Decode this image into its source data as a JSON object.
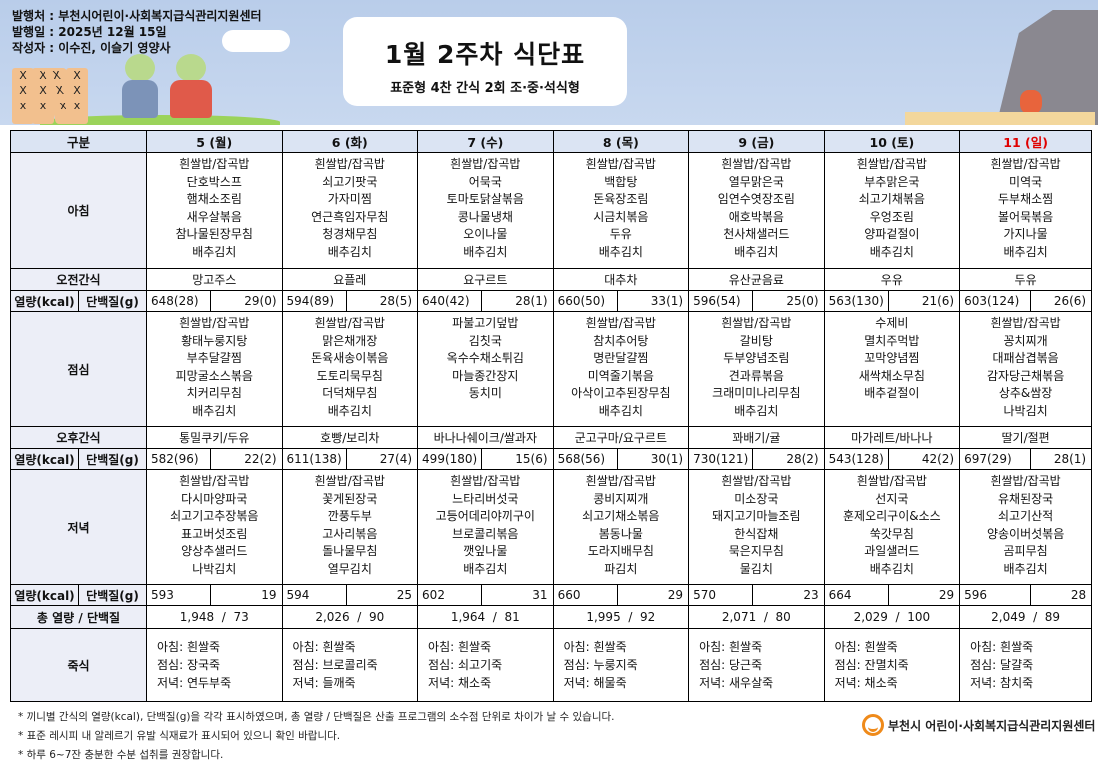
{
  "header": {
    "publisher": "발행처 : 부천시어린이·사회복지급식관리지원센터",
    "issue_date": "발행일 : 2025년 12월 15일",
    "author": "작성자 : 이수진, 이슬기 영양사",
    "title": "1월 2주차 식단표",
    "subtitle": "표준형 4찬 간식 2회 조·중·석식형"
  },
  "colors": {
    "header_bg": "#dbe4f3",
    "label_bg": "#eceef7",
    "sunday": "#e00000",
    "logo": "#ef8a1a"
  },
  "labels": {
    "category": "구분",
    "breakfast": "아침",
    "am_snack": "오전간식",
    "kcal": "열량(kcal)",
    "protein": "단백질(g)",
    "lunch": "점심",
    "pm_snack": "오후간식",
    "dinner": "저녁",
    "total": "총 열량 / 단백질",
    "porridge": "죽식"
  },
  "days": [
    {
      "label": "5 (월)",
      "sunday": false,
      "breakfast": [
        "흰쌀밥/잡곡밥",
        "단호박스프",
        "햄채소조림",
        "새우살볶음",
        "참나물된장무침",
        "배추김치"
      ],
      "am_snack": "망고주스",
      "am_kcal": "648(28)",
      "am_protein": "29(0)",
      "lunch": [
        "흰쌀밥/잡곡밥",
        "황태누룽지탕",
        "부추달걀찜",
        "피망굴소스볶음",
        "치커리무침",
        "배추김치"
      ],
      "pm_snack": "통밀쿠키/두유",
      "pm_kcal": "582(96)",
      "pm_protein": "22(2)",
      "dinner": [
        "흰쌀밥/잡곡밥",
        "다시마양파국",
        "쇠고기고추장볶음",
        "표고버섯조림",
        "양상추샐러드",
        "나박김치"
      ],
      "dn_kcal": "593",
      "dn_protein": "19",
      "total": "1,948  /  73",
      "porridge": [
        "아침: 흰쌀죽",
        "점심: 장국죽",
        "저녁: 연두부죽"
      ]
    },
    {
      "label": "6 (화)",
      "sunday": false,
      "breakfast": [
        "흰쌀밥/잡곡밥",
        "쇠고기팟국",
        "가자미찜",
        "연근흑임자무침",
        "청경채무침",
        "배추김치"
      ],
      "am_snack": "요플레",
      "am_kcal": "594(89)",
      "am_protein": "28(5)",
      "lunch": [
        "흰쌀밥/잡곡밥",
        "맑은채개장",
        "돈육새송이볶음",
        "도토리묵무침",
        "더덕채무침",
        "배추김치"
      ],
      "pm_snack": "호빵/보리차",
      "pm_kcal": "611(138)",
      "pm_protein": "27(4)",
      "dinner": [
        "흰쌀밥/잡곡밥",
        "꽃게된장국",
        "깐풍두부",
        "고사리볶음",
        "돌나물무침",
        "열무김치"
      ],
      "dn_kcal": "594",
      "dn_protein": "25",
      "total": "2,026  /  90",
      "porridge": [
        "아침: 흰쌀죽",
        "점심: 브로콜리죽",
        "저녁: 들깨죽"
      ]
    },
    {
      "label": "7 (수)",
      "sunday": false,
      "breakfast": [
        "흰쌀밥/잡곡밥",
        "어묵국",
        "토마토닭살볶음",
        "콩나물냉채",
        "오이나물",
        "배추김치"
      ],
      "am_snack": "요구르트",
      "am_kcal": "640(42)",
      "am_protein": "28(1)",
      "lunch": [
        "파불고기덮밥",
        "김칫국",
        "옥수수채소튀김",
        "마늘종간장지",
        "동치미"
      ],
      "pm_snack": "바나나쉐이크/쌀과자",
      "pm_kcal": "499(180)",
      "pm_protein": "15(6)",
      "dinner": [
        "흰쌀밥/잡곡밥",
        "느타리버섯국",
        "고등어데리야끼구이",
        "브로콜리볶음",
        "깻잎나물",
        "배추김치"
      ],
      "dn_kcal": "602",
      "dn_protein": "31",
      "total": "1,964  /  81",
      "porridge": [
        "아침: 흰쌀죽",
        "점심: 쇠고기죽",
        "저녁: 채소죽"
      ]
    },
    {
      "label": "8 (목)",
      "sunday": false,
      "breakfast": [
        "흰쌀밥/잡곡밥",
        "백합탕",
        "돈육장조림",
        "시금치볶음",
        "두유",
        "배추김치"
      ],
      "am_snack": "대추차",
      "am_kcal": "660(50)",
      "am_protein": "33(1)",
      "lunch": [
        "흰쌀밥/잡곡밥",
        "참치추어탕",
        "명란달걀찜",
        "미역줄기볶음",
        "아삭이고추된장무침",
        "배추김치"
      ],
      "pm_snack": "군고구마/요구르트",
      "pm_kcal": "568(56)",
      "pm_protein": "30(1)",
      "dinner": [
        "흰쌀밥/잡곡밥",
        "콩비지찌개",
        "쇠고기채소볶음",
        "봄동나물",
        "도라지배무침",
        "파김치"
      ],
      "dn_kcal": "660",
      "dn_protein": "29",
      "total": "1,995  /  92",
      "porridge": [
        "아침: 흰쌀죽",
        "점심: 누룽지죽",
        "저녁: 해물죽"
      ]
    },
    {
      "label": "9 (금)",
      "sunday": false,
      "breakfast": [
        "흰쌀밥/잡곡밥",
        "열무맑은국",
        "임연수엿장조림",
        "애호박볶음",
        "천사채샐러드",
        "배추김치"
      ],
      "am_snack": "유산균음료",
      "am_kcal": "596(54)",
      "am_protein": "25(0)",
      "lunch": [
        "흰쌀밥/잡곡밥",
        "갈비탕",
        "두부양념조림",
        "견과류볶음",
        "크래미미나리무침",
        "배추김치"
      ],
      "pm_snack": "꽈배기/귤",
      "pm_kcal": "730(121)",
      "pm_protein": "28(2)",
      "dinner": [
        "흰쌀밥/잡곡밥",
        "미소장국",
        "돼지고기마늘조림",
        "한식잡채",
        "묵은지무침",
        "물김치"
      ],
      "dn_kcal": "570",
      "dn_protein": "23",
      "total": "2,071  /  80",
      "porridge": [
        "아침: 흰쌀죽",
        "점심: 당근죽",
        "저녁: 새우살죽"
      ]
    },
    {
      "label": "10 (토)",
      "sunday": false,
      "breakfast": [
        "흰쌀밥/잡곡밥",
        "부추맑은국",
        "쇠고기채볶음",
        "우엉조림",
        "양파겉절이",
        "배추김치"
      ],
      "am_snack": "우유",
      "am_kcal": "563(130)",
      "am_protein": "21(6)",
      "lunch": [
        "수제비",
        "멸치주먹밥",
        "꼬막양념찜",
        "새싹채소무침",
        "배추겉절이"
      ],
      "pm_snack": "마가레트/바나나",
      "pm_kcal": "543(128)",
      "pm_protein": "42(2)",
      "dinner": [
        "흰쌀밥/잡곡밥",
        "선지국",
        "훈제오리구이&소스",
        "쑥갓무침",
        "과일샐러드",
        "배추김치"
      ],
      "dn_kcal": "664",
      "dn_protein": "29",
      "total": "2,029  /  100",
      "porridge": [
        "아침: 흰쌀죽",
        "점심: 잔멸치죽",
        "저녁: 채소죽"
      ]
    },
    {
      "label": "11 (일)",
      "sunday": true,
      "breakfast": [
        "흰쌀밥/잡곡밥",
        "미역국",
        "두부채소찜",
        "볼어묵볶음",
        "가지나물",
        "배추김치"
      ],
      "am_snack": "두유",
      "am_kcal": "603(124)",
      "am_protein": "26(6)",
      "lunch": [
        "흰쌀밥/잡곡밥",
        "꽁치찌개",
        "대패삼겹볶음",
        "감자당근채볶음",
        "상추&쌈장",
        "나박김치"
      ],
      "pm_snack": "딸기/절편",
      "pm_kcal": "697(29)",
      "pm_protein": "28(1)",
      "dinner": [
        "흰쌀밥/잡곡밥",
        "유채된장국",
        "쇠고기산적",
        "양송이버섯볶음",
        "곰피무침",
        "배추김치"
      ],
      "dn_kcal": "596",
      "dn_protein": "28",
      "total": "2,049  /  89",
      "porridge": [
        "아침: 흰쌀죽",
        "점심: 달걀죽",
        "저녁: 참치죽"
      ]
    }
  ],
  "notes": [
    "* 끼니별 간식의 열량(kcal), 단백질(g)을 각각 표시하였으며, 총 열량 / 단백질은 산출 프로그램의 소수점 단위로 차이가 날 수 있습니다.",
    "* 표준 레시피 내 알레르기 유발 식재료가 표시되어 있으니 확인 바랍니다.",
    "* 하루 6~7잔 충분한 수분 섭취를 권장합니다."
  ],
  "footer_logo": "부천시 어린이·사회복지급식관리지원센터"
}
